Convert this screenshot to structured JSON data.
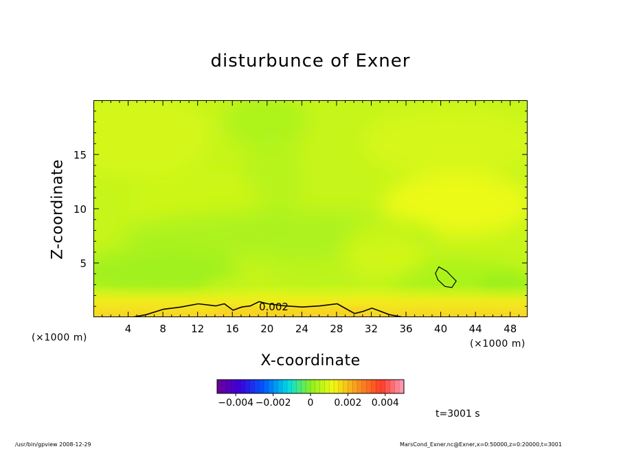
{
  "chart_data": {
    "type": "heatmap",
    "title": "disturbunce of Exner",
    "xlabel": "X-coordinate",
    "ylabel": "Z-coordinate",
    "x_unit": "(×1000 m)",
    "y_unit": "(×1000 m)",
    "xlim": [
      0,
      50
    ],
    "ylim": [
      0,
      20
    ],
    "x_ticks": [
      4,
      8,
      12,
      16,
      20,
      24,
      28,
      32,
      36,
      40,
      44,
      48
    ],
    "y_ticks": [
      5,
      10,
      15
    ],
    "contour_label": "0.002",
    "contour_line": [
      [
        4,
        0
      ],
      [
        6,
        0.3
      ],
      [
        8,
        0.8
      ],
      [
        10,
        1.0
      ],
      [
        12,
        1.3
      ],
      [
        14,
        1.1
      ],
      [
        15,
        1.3
      ],
      [
        16,
        0.7
      ],
      [
        17,
        1.0
      ],
      [
        18,
        1.1
      ],
      [
        19,
        1.5
      ],
      [
        20,
        1.3
      ],
      [
        22,
        1.1
      ],
      [
        24,
        1.0
      ],
      [
        26,
        1.1
      ],
      [
        28,
        1.3
      ],
      [
        30,
        0.4
      ],
      [
        31,
        0.6
      ],
      [
        32,
        0.9
      ],
      [
        33,
        0.6
      ],
      [
        34,
        0.3
      ],
      [
        36,
        0.0
      ]
    ],
    "contour_closed": [
      [
        39.7,
        4.7
      ],
      [
        40.6,
        4.3
      ],
      [
        41.2,
        3.8
      ],
      [
        41.7,
        3.4
      ],
      [
        41.2,
        2.8
      ],
      [
        40.4,
        2.9
      ],
      [
        39.6,
        3.5
      ],
      [
        39.3,
        4.1
      ]
    ],
    "colorbar": {
      "min": -0.005,
      "max": 0.005,
      "ticks": [
        "−0.004",
        "−0.002",
        "0",
        "0.002",
        "0.004"
      ],
      "tick_values": [
        -0.004,
        -0.002,
        0,
        0.002,
        0.004
      ]
    }
  },
  "time_label": "t=3001 s",
  "footer": {
    "left": "/usr/bin/gpview  2008-12-29",
    "right": "MarsCond_Exner.nc@Exner,x=0:50000,z=0:20000,t=3001"
  },
  "colors": {
    "field_base": "#c4f51a",
    "green": "#9cf11c",
    "yellow": "#f0fa16",
    "orange": "#f8d024"
  }
}
